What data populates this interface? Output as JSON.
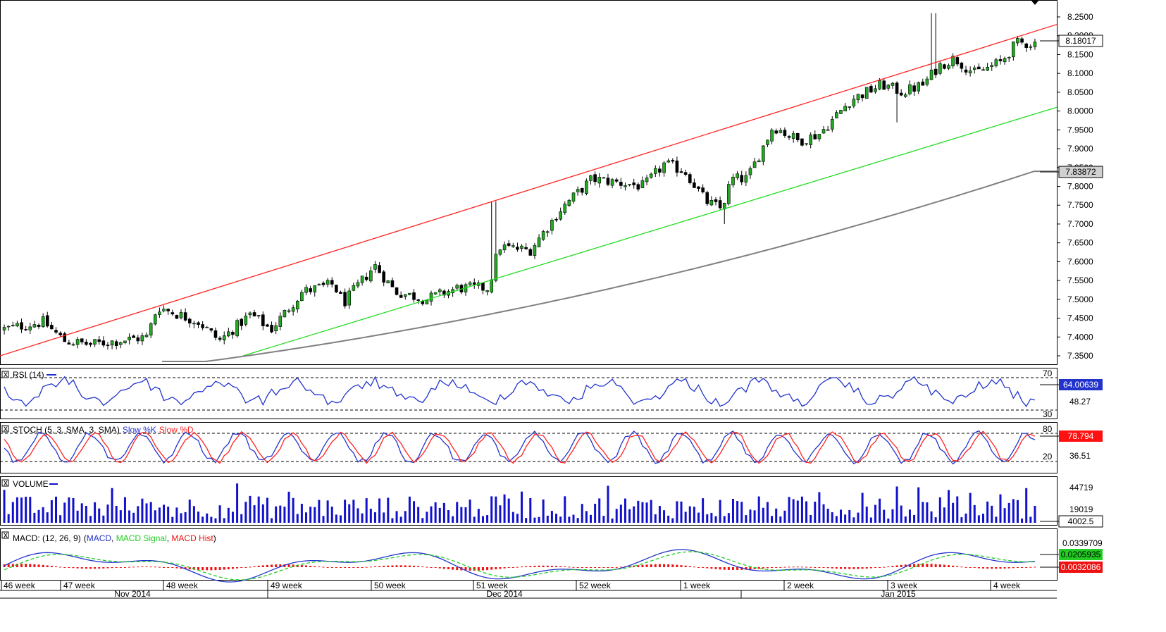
{
  "colors": {
    "bull": "#22aa22",
    "bear": "#000000",
    "upper_channel": "#ff2222",
    "lower_channel": "#22dd22",
    "ma": "#808080",
    "rsi": "#2233cc",
    "stoch_k": "#2233cc",
    "stoch_d": "#ff2222",
    "volume": "#1111cc",
    "macd": "#2233cc",
    "macd_signal": "#22cc22",
    "macd_hist": "#ee1111"
  },
  "price_panel": {
    "y_ticks": [
      "8.2500",
      "8.2000",
      "8.1500",
      "8.1000",
      "8.0500",
      "8.0000",
      "7.9500",
      "7.9000",
      "7.8500",
      "7.8000",
      "7.7500",
      "7.7000",
      "7.6500",
      "7.6000",
      "7.5500",
      "7.5000",
      "7.4500",
      "7.4000",
      "7.3500"
    ],
    "last_price_label": "8.18017",
    "ma_label": "7.83872"
  },
  "rsi_panel": {
    "title": "RSI (14)",
    "levels": [
      "70",
      "30"
    ],
    "mid_label": "48.27",
    "current_label": "64.00639"
  },
  "stoch_panel": {
    "title": "STOCH (5, 3, SMA, 3, SMA)",
    "k_name": "Slow %K",
    "d_name": "Slow %D",
    "levels": [
      "80",
      "20"
    ],
    "mid_label": "36.51",
    "current_label": "78.794"
  },
  "volume_panel": {
    "title": "VOLUME",
    "ticks": [
      "44719",
      "19019"
    ],
    "current_label": "4002.5"
  },
  "macd_panel": {
    "title": "MACD: (12, 26, 9)",
    "names": [
      "MACD",
      "MACD Signal",
      "MACD Hist"
    ],
    "top_label": "0.0339709",
    "macd_label": "0.0205935",
    "hist_label": "0.0032086"
  },
  "x_axis": {
    "weeks": [
      "46 week",
      "47 week",
      "48 week",
      "49 week",
      "50 week",
      "51 week",
      "52 week",
      "1 week",
      "2 week",
      "3 week",
      "4 week"
    ],
    "months": [
      "Nov 2014",
      "Dec 2014",
      "Jan 2015"
    ]
  },
  "chart_data": {
    "type": "candlestick",
    "series": [
      {
        "name": "Channel upper",
        "from": 7.35,
        "to": 8.23
      },
      {
        "name": "Channel lower",
        "from": 7.2,
        "to": 8.01
      },
      {
        "name": "Moving average",
        "from": 7.32,
        "to": 7.84
      }
    ],
    "price_range": [
      7.315,
      8.27
    ],
    "last_close": 8.18017,
    "checkpoints": [
      {
        "t": 0.0,
        "p": 7.42
      },
      {
        "t": 0.04,
        "p": 7.44
      },
      {
        "t": 0.06,
        "p": 7.39
      },
      {
        "t": 0.085,
        "p": 7.38
      },
      {
        "t": 0.14,
        "p": 7.4
      },
      {
        "t": 0.15,
        "p": 7.48
      },
      {
        "t": 0.19,
        "p": 7.44
      },
      {
        "t": 0.21,
        "p": 7.39
      },
      {
        "t": 0.24,
        "p": 7.46
      },
      {
        "t": 0.26,
        "p": 7.42
      },
      {
        "t": 0.29,
        "p": 7.52
      },
      {
        "t": 0.32,
        "p": 7.54
      },
      {
        "t": 0.33,
        "p": 7.49
      },
      {
        "t": 0.36,
        "p": 7.59
      },
      {
        "t": 0.38,
        "p": 7.52
      },
      {
        "t": 0.41,
        "p": 7.5
      },
      {
        "t": 0.44,
        "p": 7.53
      },
      {
        "t": 0.47,
        "p": 7.53
      },
      {
        "t": 0.48,
        "p": 7.64
      },
      {
        "t": 0.51,
        "p": 7.63
      },
      {
        "t": 0.54,
        "p": 7.74
      },
      {
        "t": 0.57,
        "p": 7.82
      },
      {
        "t": 0.62,
        "p": 7.8
      },
      {
        "t": 0.64,
        "p": 7.86
      },
      {
        "t": 0.66,
        "p": 7.84
      },
      {
        "t": 0.68,
        "p": 7.76
      },
      {
        "t": 0.695,
        "p": 7.74
      },
      {
        "t": 0.705,
        "p": 7.82
      },
      {
        "t": 0.72,
        "p": 7.82
      },
      {
        "t": 0.745,
        "p": 7.96
      },
      {
        "t": 0.77,
        "p": 7.92
      },
      {
        "t": 0.79,
        "p": 7.94
      },
      {
        "t": 0.82,
        "p": 8.03
      },
      {
        "t": 0.85,
        "p": 8.07
      },
      {
        "t": 0.87,
        "p": 8.05
      },
      {
        "t": 0.89,
        "p": 8.07
      },
      {
        "t": 0.905,
        "p": 8.12
      },
      {
        "t": 0.92,
        "p": 8.14
      },
      {
        "t": 0.94,
        "p": 8.1
      },
      {
        "t": 0.965,
        "p": 8.13
      },
      {
        "t": 0.98,
        "p": 8.18
      },
      {
        "t": 1.0,
        "p": 8.18
      }
    ],
    "spikes": [
      {
        "t": 0.475,
        "high": 7.76
      },
      {
        "t": 0.9,
        "high": 8.26
      },
      {
        "t": 0.697,
        "low": 7.7
      },
      {
        "t": 0.865,
        "low": 7.97
      }
    ],
    "title": "",
    "xlabel": "",
    "ylabel": ""
  }
}
